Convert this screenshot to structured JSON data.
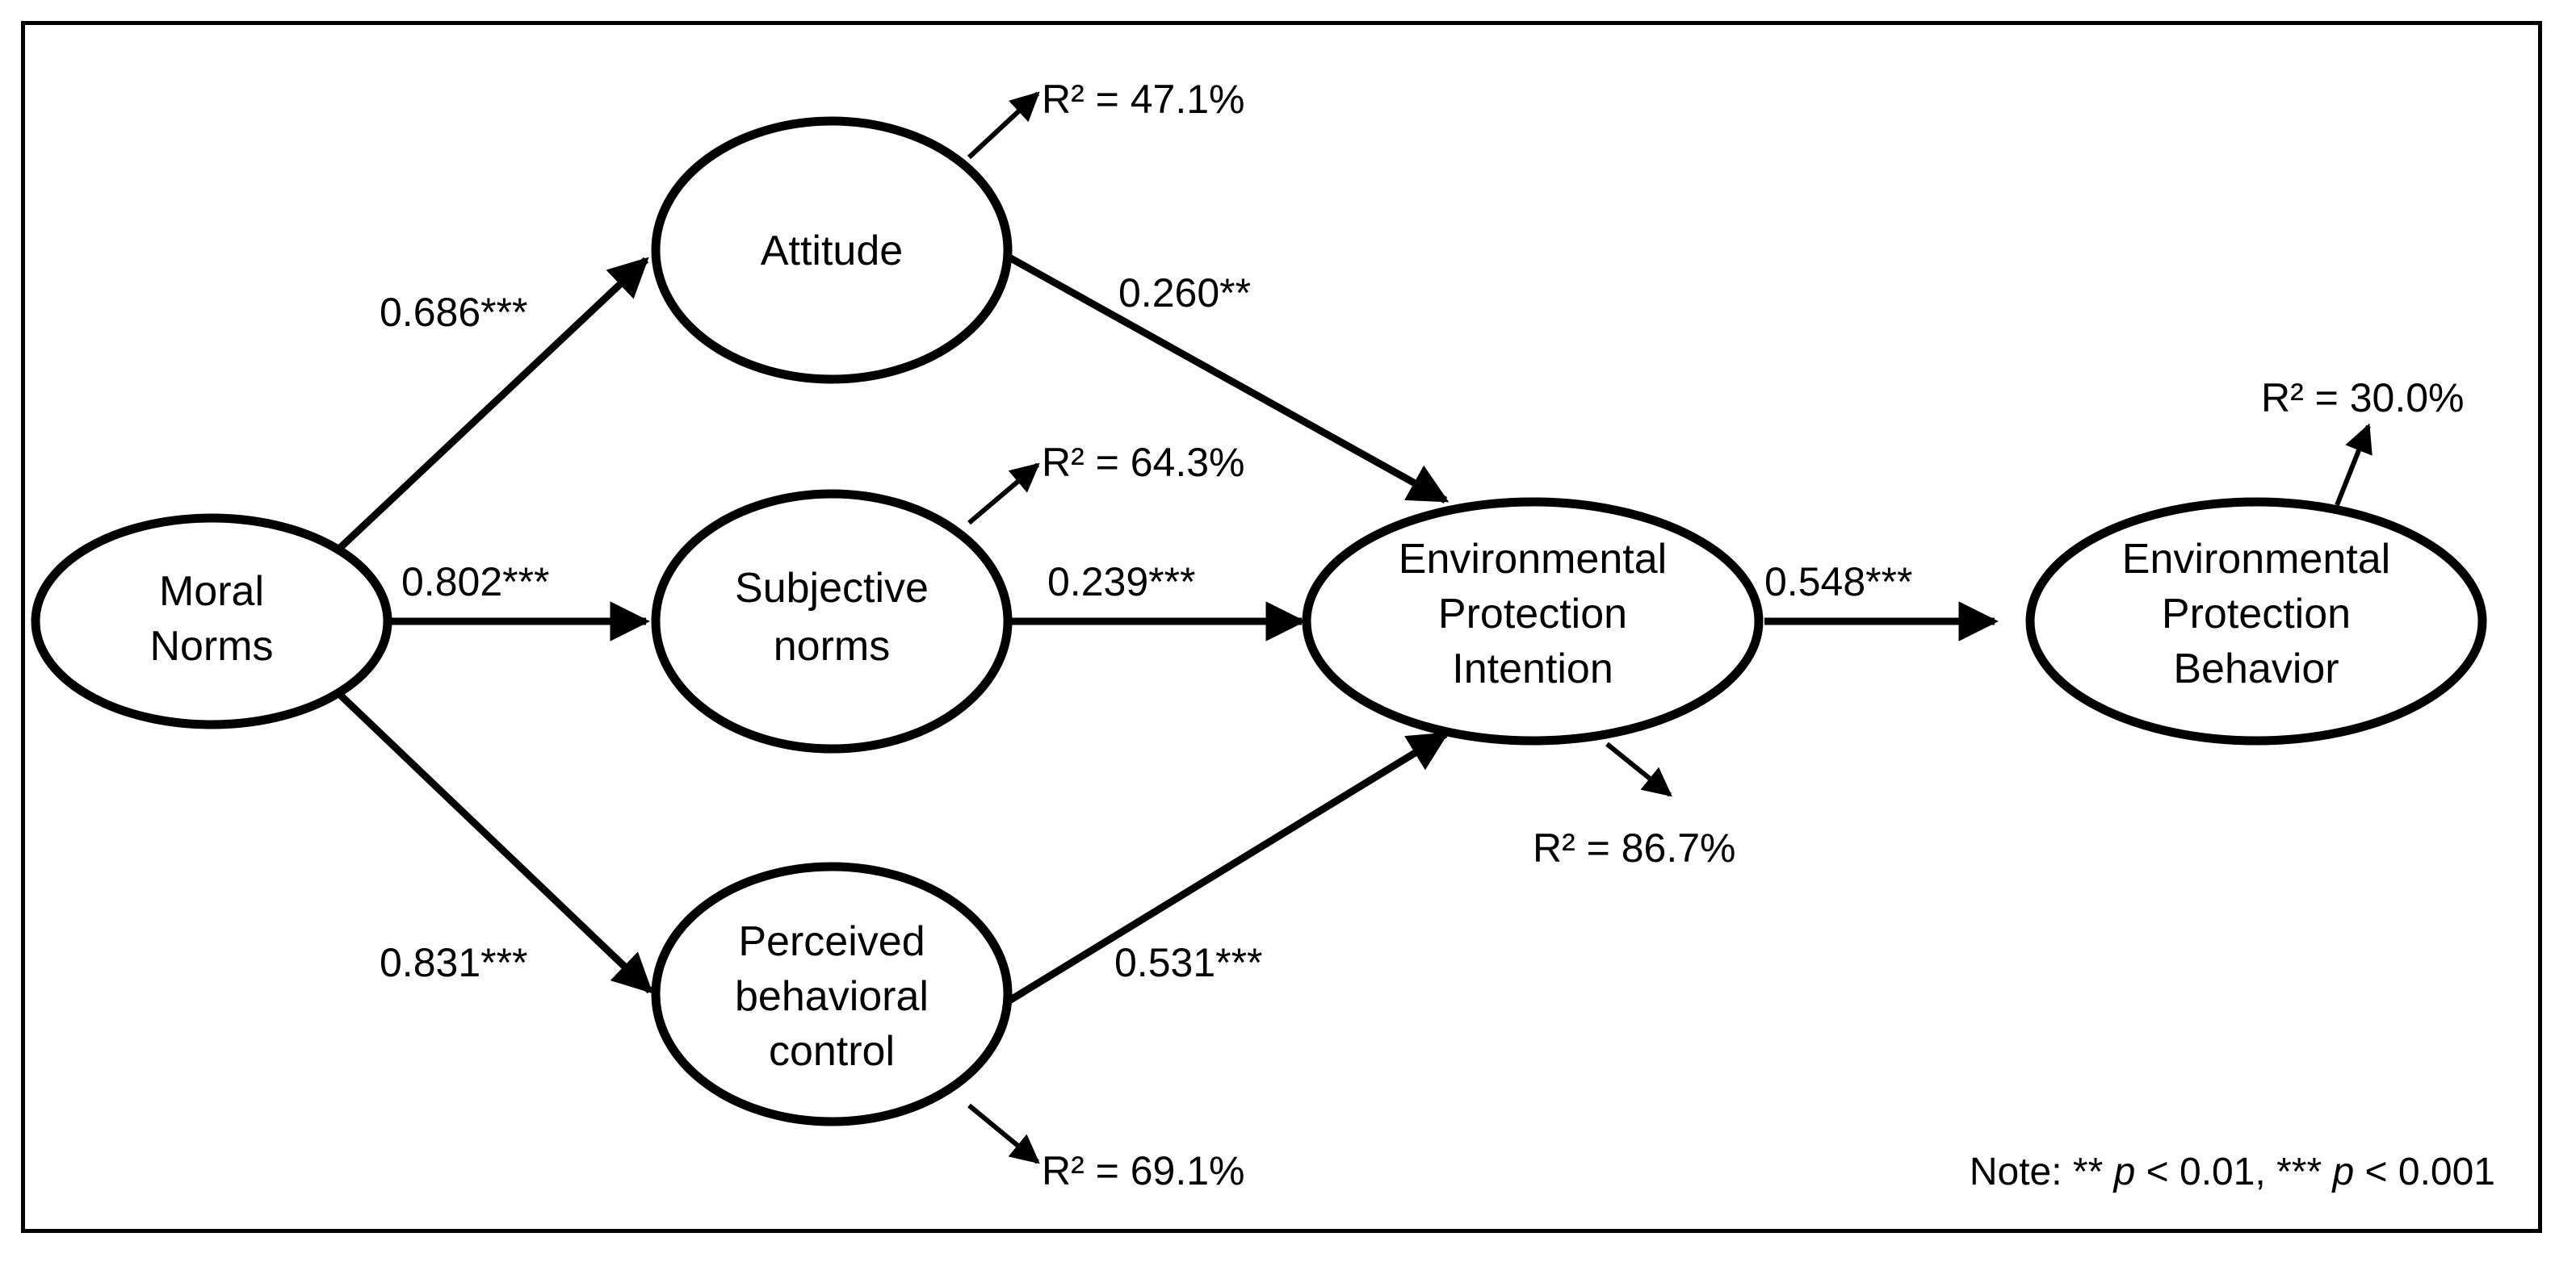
{
  "nodes": {
    "moral_norms": [
      "Moral",
      "Norms"
    ],
    "attitude": [
      "Attitude"
    ],
    "subjective_norms": [
      "Subjective",
      "norms"
    ],
    "perceived_control": [
      "Perceived",
      "behavioral",
      "control"
    ],
    "intention": [
      "Environmental",
      "Protection",
      "Intention"
    ],
    "behavior": [
      "Environmental",
      "Protection",
      "Behavior"
    ]
  },
  "paths": {
    "mn_att": "0.686***",
    "mn_sn": "0.802***",
    "mn_pbc": "0.831***",
    "att_int": "0.260**",
    "sn_int": "0.239***",
    "pbc_int": "0.531***",
    "int_beh": "0.548***"
  },
  "r_squared": {
    "attitude": "R² = 47.1%",
    "subjective_norms": "R² = 64.3%",
    "perceived_control": "R² = 69.1%",
    "intention": "R² = 86.7%",
    "behavior": "R² = 30.0%"
  },
  "note": {
    "prefix": "Note: ** ",
    "p1": "p",
    "mid": " < 0.01, *** ",
    "p2": "p",
    "suffix": " < 0.001"
  }
}
